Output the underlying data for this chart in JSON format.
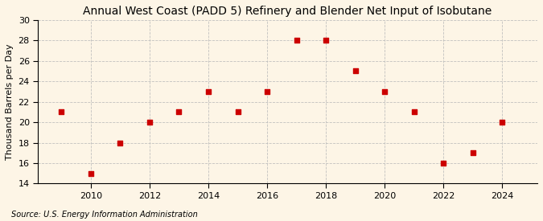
{
  "title": "Annual West Coast (PADD 5) Refinery and Blender Net Input of Isobutane",
  "ylabel": "Thousand Barrels per Day",
  "source": "Source: U.S. Energy Information Administration",
  "years": [
    2009,
    2010,
    2011,
    2012,
    2013,
    2014,
    2015,
    2016,
    2017,
    2018,
    2019,
    2020,
    2021,
    2022,
    2023,
    2024
  ],
  "values": [
    21,
    15,
    18,
    20,
    21,
    23,
    21,
    23,
    28,
    28,
    25,
    23,
    21,
    16,
    17,
    20
  ],
  "ylim": [
    14,
    30
  ],
  "yticks": [
    14,
    16,
    18,
    20,
    22,
    24,
    26,
    28,
    30
  ],
  "xticks": [
    2010,
    2012,
    2014,
    2016,
    2018,
    2020,
    2022,
    2024
  ],
  "xlim": [
    2008.2,
    2025.2
  ],
  "marker_color": "#cc0000",
  "marker": "s",
  "marker_size": 4,
  "background_color": "#fdf5e6",
  "grid_color": "#bbbbbb",
  "title_fontsize": 10,
  "label_fontsize": 8,
  "tick_fontsize": 8,
  "source_fontsize": 7
}
